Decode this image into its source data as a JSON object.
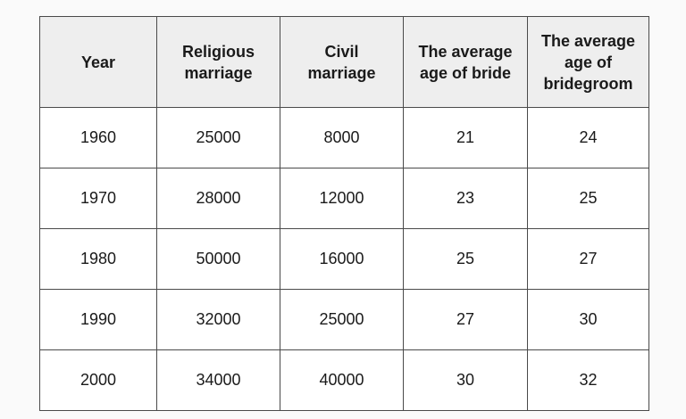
{
  "table": {
    "header": [
      "Year",
      "Religious marriage",
      "Civil marriage",
      "The average age of bride",
      "The average age of bridegroom"
    ],
    "rows": [
      [
        1960,
        25000,
        8000,
        21,
        24
      ],
      [
        1970,
        28000,
        12000,
        23,
        25
      ],
      [
        1980,
        50000,
        16000,
        25,
        27
      ],
      [
        1990,
        32000,
        25000,
        27,
        30
      ],
      [
        2000,
        34000,
        40000,
        30,
        32
      ]
    ]
  }
}
